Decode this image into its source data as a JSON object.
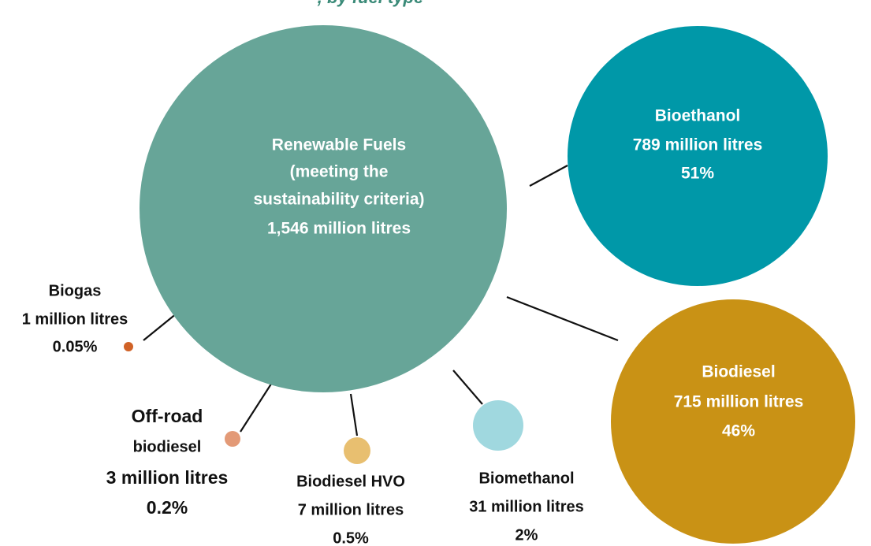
{
  "title": ", by fuel type",
  "center": {
    "lines": [
      "Renewable Fuels",
      "(meeting the",
      "sustainability criteria)",
      "1,546 million litres"
    ]
  },
  "nodes": [
    {
      "lines": [
        "Bioethanol",
        "789 million litres",
        "51%"
      ]
    },
    {
      "lines": [
        "Biodiesel",
        "715 million litres",
        "46%"
      ]
    },
    {
      "lines": [
        "Biomethanol",
        "31 million litres",
        "2%"
      ]
    },
    {
      "lines": [
        "Biodiesel HVO",
        "7 million litres",
        "0.5%"
      ]
    },
    {
      "lines": [
        "Off-road",
        "biodiesel",
        "3 million litres",
        "0.2%"
      ]
    },
    {
      "lines": [
        "Biogas",
        "1 million litres",
        "0.05%"
      ]
    }
  ]
}
